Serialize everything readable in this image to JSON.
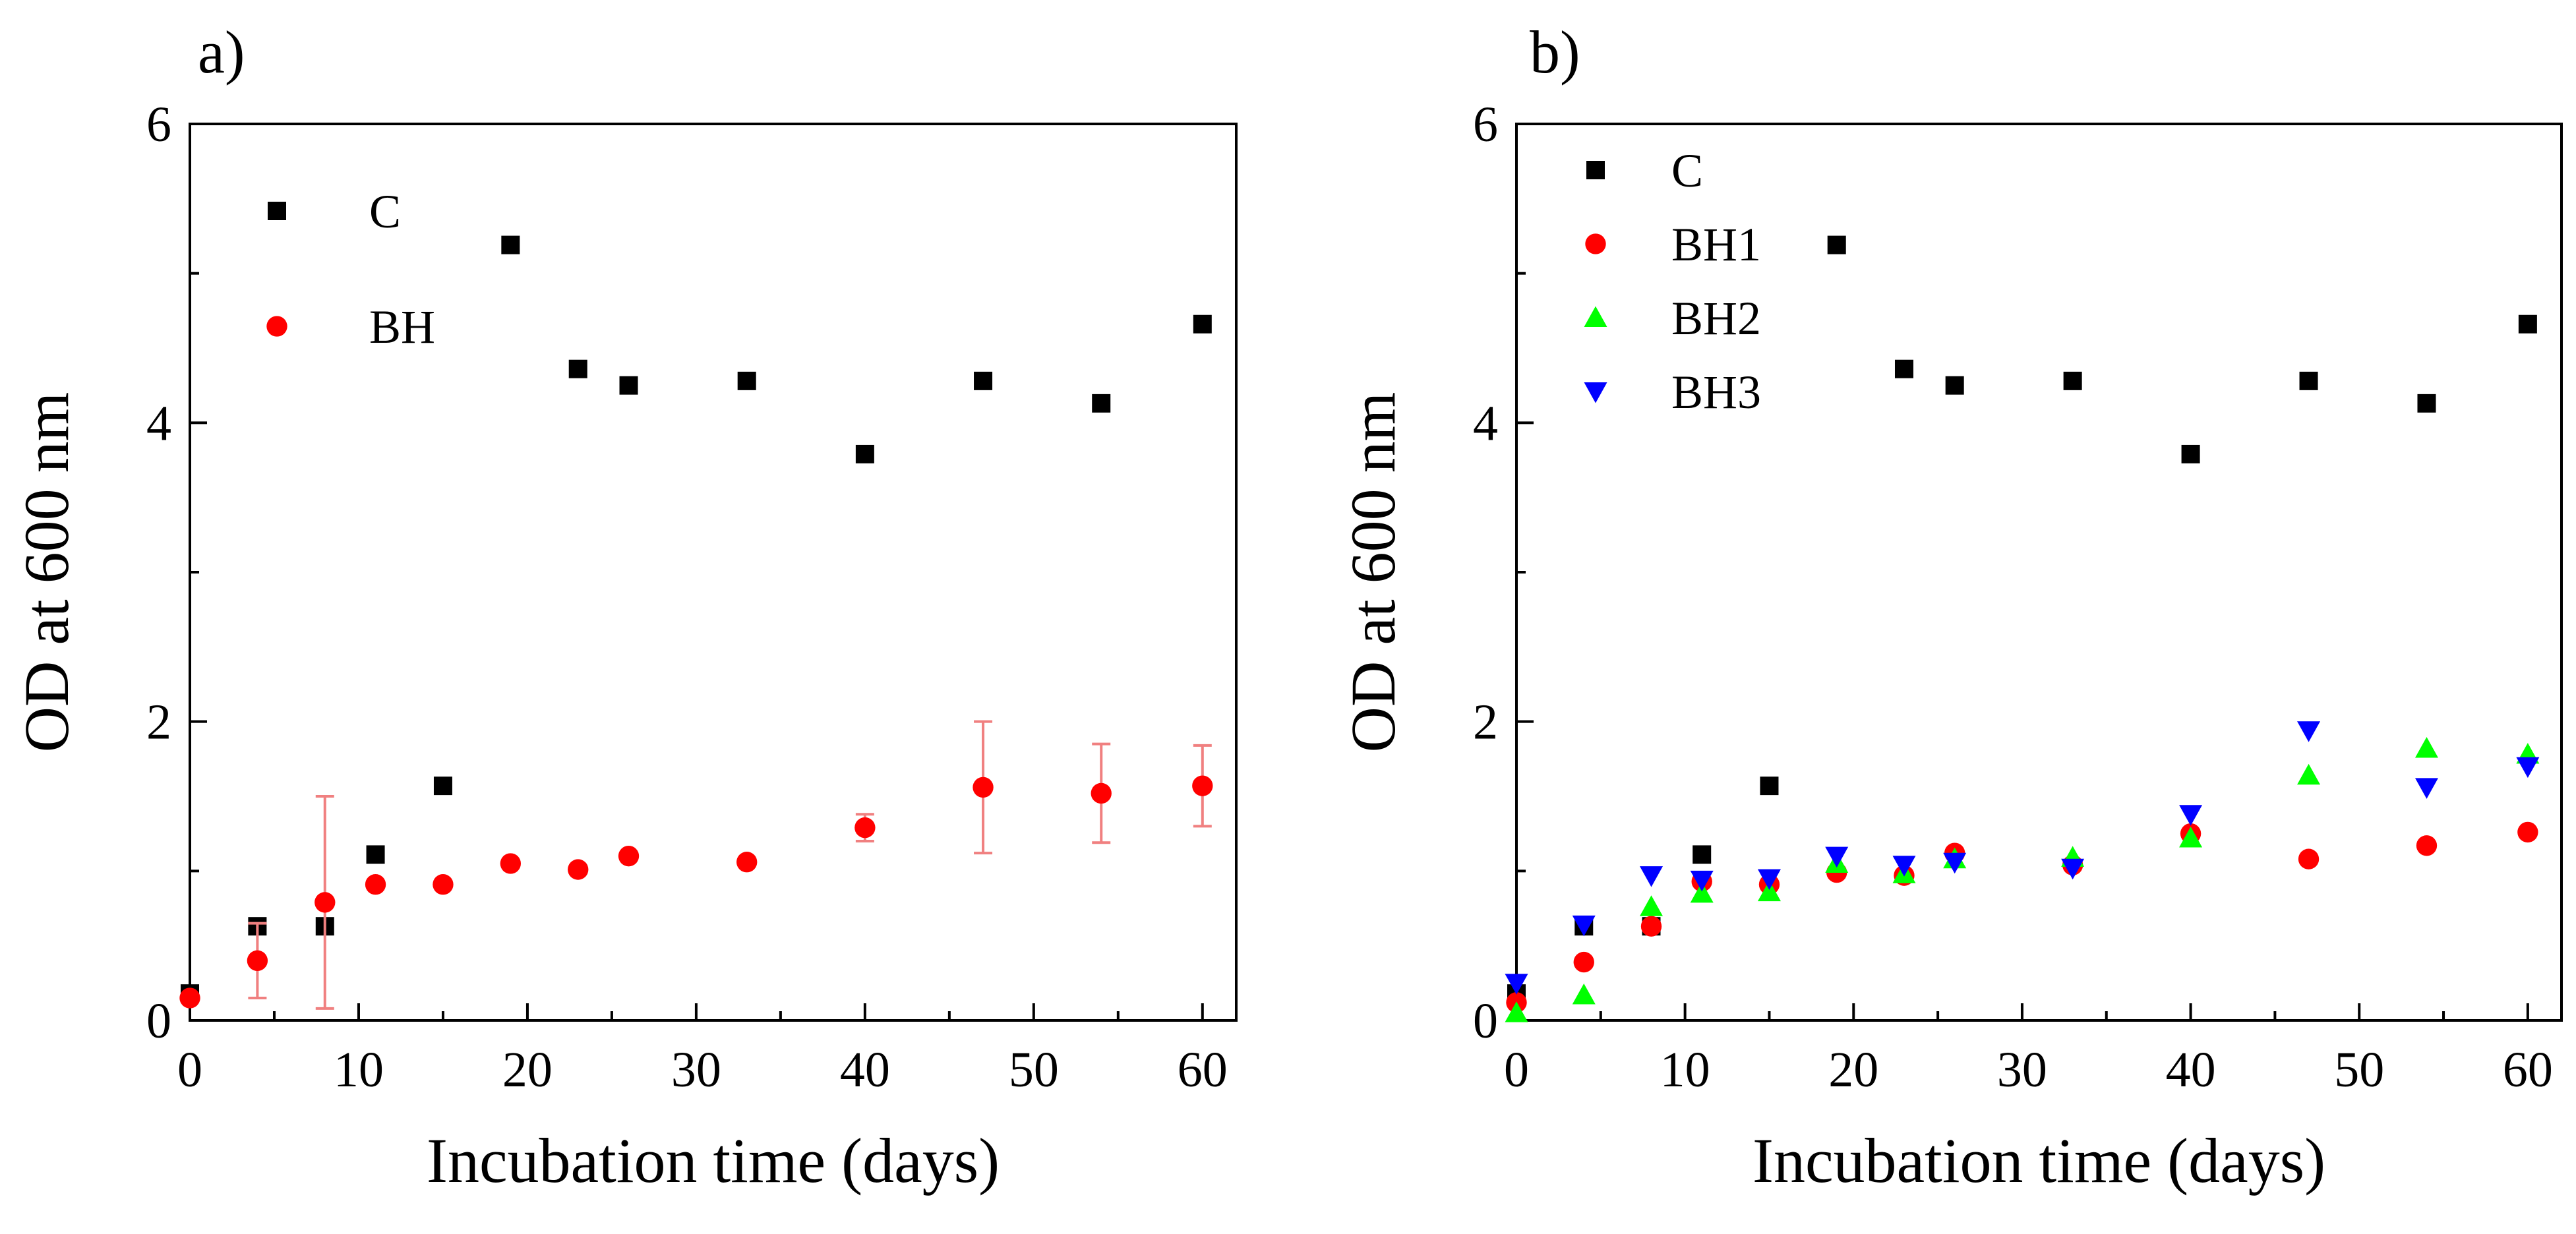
{
  "figure": {
    "colors": {
      "C": "#000000",
      "BH": "#ff0000",
      "BH1": "#ff0000",
      "BH2": "#00ff00",
      "BH3": "#0000ff",
      "errorbar": "#f08080"
    }
  },
  "chart_data": [
    {
      "type": "scatter",
      "panel_label": "a)",
      "xlabel": "Incubation time (days)",
      "ylabel": "OD at 600 nm",
      "xlim": [
        0,
        62
      ],
      "ylim": [
        0,
        6
      ],
      "xticks": [
        0,
        10,
        20,
        30,
        40,
        50,
        60
      ],
      "yticks": [
        0,
        2,
        4,
        6
      ],
      "grid": false,
      "legend_position": "top-left",
      "series": [
        {
          "name": "C",
          "marker": "square",
          "color": "#000000",
          "x": [
            0,
            4,
            8,
            11,
            15,
            19,
            23,
            26,
            33,
            40,
            47,
            54,
            60
          ],
          "y": [
            0.18,
            0.63,
            0.63,
            1.11,
            1.57,
            5.19,
            4.36,
            4.25,
            4.28,
            3.79,
            4.28,
            4.13,
            4.66
          ]
        },
        {
          "name": "BH",
          "marker": "circle",
          "color": "#ff0000",
          "x": [
            0,
            4,
            8,
            11,
            15,
            19,
            23,
            26,
            33,
            40,
            47,
            54,
            60
          ],
          "y": [
            0.15,
            0.4,
            0.79,
            0.91,
            0.91,
            1.05,
            1.01,
            1.1,
            1.06,
            1.29,
            1.56,
            1.52,
            1.57
          ],
          "error": [
            0,
            0.25,
            0.71,
            0,
            0,
            0,
            0,
            0,
            0,
            0.09,
            0.44,
            0.33,
            0.27
          ]
        }
      ]
    },
    {
      "type": "scatter",
      "panel_label": "b)",
      "xlabel": "Incubation time (days)",
      "ylabel": "OD at 600 nm",
      "xlim": [
        0,
        62
      ],
      "ylim": [
        0,
        6
      ],
      "xticks": [
        0,
        10,
        20,
        30,
        40,
        50,
        60
      ],
      "yticks": [
        0,
        2,
        4,
        6
      ],
      "grid": false,
      "legend_position": "top-left",
      "series": [
        {
          "name": "C",
          "marker": "square",
          "color": "#000000",
          "x": [
            0,
            4,
            8,
            11,
            15,
            19,
            23,
            26,
            33,
            40,
            47,
            54,
            60
          ],
          "y": [
            0.18,
            0.63,
            0.63,
            1.11,
            1.57,
            5.19,
            4.36,
            4.25,
            4.28,
            3.79,
            4.28,
            4.13,
            4.66
          ]
        },
        {
          "name": "BH1",
          "marker": "circle",
          "color": "#ff0000",
          "x": [
            0,
            4,
            8,
            11,
            15,
            19,
            23,
            26,
            33,
            40,
            47,
            54,
            60
          ],
          "y": [
            0.12,
            0.39,
            0.63,
            0.93,
            0.91,
            0.99,
            0.97,
            1.12,
            1.04,
            1.25,
            1.08,
            1.17,
            1.26
          ]
        },
        {
          "name": "BH2",
          "marker": "triangle-up",
          "color": "#00ff00",
          "x": [
            0,
            4,
            8,
            11,
            15,
            19,
            23,
            26,
            33,
            40,
            47,
            54,
            60
          ],
          "y": [
            0.05,
            0.17,
            0.76,
            0.85,
            0.86,
            1.05,
            0.98,
            1.08,
            1.09,
            1.22,
            1.64,
            1.82,
            1.78
          ]
        },
        {
          "name": "BH3",
          "marker": "triangle-down",
          "color": "#0000ff",
          "x": [
            0,
            4,
            8,
            11,
            15,
            19,
            23,
            26,
            33,
            40,
            47,
            54,
            60
          ],
          "y": [
            0.25,
            0.64,
            0.97,
            0.94,
            0.95,
            1.1,
            1.04,
            1.06,
            1.02,
            1.38,
            1.94,
            1.56,
            1.7
          ]
        }
      ]
    }
  ]
}
